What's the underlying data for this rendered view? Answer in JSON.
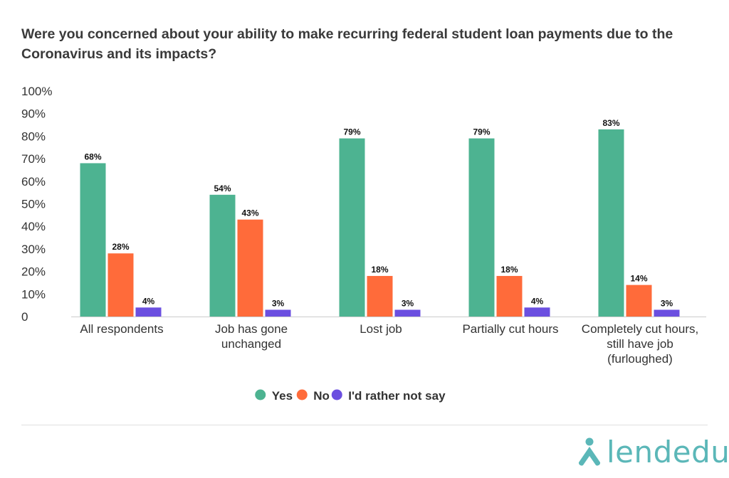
{
  "title": "Were you concerned about your ability to make recurring federal student loan payments due to the Coronavirus and its impacts?",
  "brand": {
    "name": "lendedu",
    "color": "#5bb7b8"
  },
  "chart_data": {
    "type": "bar",
    "title": "Were you concerned about your ability to make recurring federal student loan payments due to the Coronavirus and its impacts?",
    "xlabel": "",
    "ylabel": "",
    "ylim": [
      0,
      100
    ],
    "yticks": [
      "0",
      "10%",
      "20%",
      "30%",
      "40%",
      "50%",
      "60%",
      "70%",
      "80%",
      "90%",
      "100%"
    ],
    "categories": [
      [
        "All respondents"
      ],
      [
        "Job has gone",
        "unchanged"
      ],
      [
        "Lost job"
      ],
      [
        "Partially cut hours"
      ],
      [
        "Completely cut hours,",
        "still have job",
        "(furloughed)"
      ]
    ],
    "series": [
      {
        "name": "Yes",
        "color": "#4db391",
        "values": [
          68,
          54,
          79,
          79,
          83
        ],
        "labels": [
          "68%",
          "54%",
          "79%",
          "79%",
          "83%"
        ]
      },
      {
        "name": "No",
        "color": "#ff6b3a",
        "values": [
          28,
          43,
          18,
          18,
          14
        ],
        "labels": [
          "28%",
          "43%",
          "18%",
          "18%",
          "14%"
        ]
      },
      {
        "name": "I'd rather not say",
        "color": "#6b4fe0",
        "values": [
          4,
          3,
          3,
          4,
          3
        ],
        "labels": [
          "4%",
          "3%",
          "3%",
          "4%",
          "3%"
        ]
      }
    ],
    "grid": false,
    "legend_position": "bottom"
  }
}
